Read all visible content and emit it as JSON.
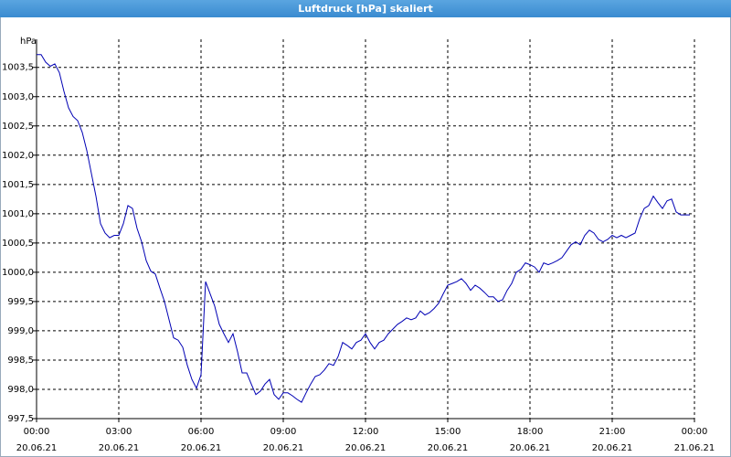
{
  "chart_data": {
    "type": "line",
    "title": "Luftdruck [hPa] skaliert",
    "y_unit": "hPa",
    "x": [
      "20.06.21 00:00",
      "20.06.21 00:10",
      "20.06.21 00:20",
      "20.06.21 00:30",
      "20.06.21 00:40",
      "20.06.21 00:50",
      "20.06.21 01:00",
      "20.06.21 01:10",
      "20.06.21 01:20",
      "20.06.21 01:30",
      "20.06.21 01:40",
      "20.06.21 01:50",
      "20.06.21 02:00",
      "20.06.21 02:10",
      "20.06.21 02:20",
      "20.06.21 02:30",
      "20.06.21 02:40",
      "20.06.21 02:50",
      "20.06.21 03:00",
      "20.06.21 03:10",
      "20.06.21 03:20",
      "20.06.21 03:30",
      "20.06.21 03:40",
      "20.06.21 03:50",
      "20.06.21 04:00",
      "20.06.21 04:10",
      "20.06.21 04:20",
      "20.06.21 04:30",
      "20.06.21 04:40",
      "20.06.21 04:50",
      "20.06.21 05:00",
      "20.06.21 05:10",
      "20.06.21 05:20",
      "20.06.21 05:30",
      "20.06.21 05:40",
      "20.06.21 05:50",
      "20.06.21 06:00",
      "20.06.21 06:10",
      "20.06.21 06:20",
      "20.06.21 06:30",
      "20.06.21 06:40",
      "20.06.21 06:50",
      "20.06.21 07:00",
      "20.06.21 07:10",
      "20.06.21 07:20",
      "20.06.21 07:30",
      "20.06.21 07:40",
      "20.06.21 07:50",
      "20.06.21 08:00",
      "20.06.21 08:10",
      "20.06.21 08:20",
      "20.06.21 08:30",
      "20.06.21 08:40",
      "20.06.21 08:50",
      "20.06.21 09:00",
      "20.06.21 09:10",
      "20.06.21 09:20",
      "20.06.21 09:30",
      "20.06.21 09:40",
      "20.06.21 09:50",
      "20.06.21 10:00",
      "20.06.21 10:10",
      "20.06.21 10:20",
      "20.06.21 10:30",
      "20.06.21 10:40",
      "20.06.21 10:50",
      "20.06.21 11:00",
      "20.06.21 11:10",
      "20.06.21 11:20",
      "20.06.21 11:30",
      "20.06.21 11:40",
      "20.06.21 11:50",
      "20.06.21 12:00",
      "20.06.21 12:10",
      "20.06.21 12:20",
      "20.06.21 12:30",
      "20.06.21 12:40",
      "20.06.21 12:50",
      "20.06.21 13:00",
      "20.06.21 13:10",
      "20.06.21 13:20",
      "20.06.21 13:30",
      "20.06.21 13:40",
      "20.06.21 13:50",
      "20.06.21 14:00",
      "20.06.21 14:10",
      "20.06.21 14:20",
      "20.06.21 14:30",
      "20.06.21 14:40",
      "20.06.21 14:50",
      "20.06.21 15:00",
      "20.06.21 15:10",
      "20.06.21 15:20",
      "20.06.21 15:30",
      "20.06.21 15:40",
      "20.06.21 15:50",
      "20.06.21 16:00",
      "20.06.21 16:10",
      "20.06.21 16:20",
      "20.06.21 16:30",
      "20.06.21 16:40",
      "20.06.21 16:50",
      "20.06.21 17:00",
      "20.06.21 17:10",
      "20.06.21 17:20",
      "20.06.21 17:30",
      "20.06.21 17:40",
      "20.06.21 17:50",
      "20.06.21 18:00",
      "20.06.21 18:10",
      "20.06.21 18:20",
      "20.06.21 18:30",
      "20.06.21 18:40",
      "20.06.21 18:50",
      "20.06.21 19:00",
      "20.06.21 19:10",
      "20.06.21 19:20",
      "20.06.21 19:30",
      "20.06.21 19:40",
      "20.06.21 19:50",
      "20.06.21 20:00",
      "20.06.21 20:10",
      "20.06.21 20:20",
      "20.06.21 20:30",
      "20.06.21 20:40",
      "20.06.21 20:50",
      "20.06.21 21:00",
      "20.06.21 21:10",
      "20.06.21 21:20",
      "20.06.21 21:30",
      "20.06.21 21:40",
      "20.06.21 21:50",
      "20.06.21 22:00",
      "20.06.21 22:10",
      "20.06.21 22:20",
      "20.06.21 22:30",
      "20.06.21 22:40",
      "20.06.21 22:50",
      "20.06.21 23:00",
      "20.06.21 23:10",
      "20.06.21 23:20",
      "20.06.21 23:30",
      "20.06.21 23:40",
      "20.06.21 23:50"
    ],
    "values": [
      1003.72,
      1003.72,
      1003.59,
      1003.52,
      1003.56,
      1003.41,
      1003.09,
      1002.81,
      1002.66,
      1002.59,
      1002.39,
      1002.08,
      1001.69,
      1001.3,
      1000.83,
      1000.67,
      1000.59,
      1000.63,
      1000.63,
      1000.83,
      1001.14,
      1001.09,
      1000.75,
      1000.52,
      1000.2,
      1000.02,
      999.97,
      999.73,
      999.5,
      999.19,
      998.88,
      998.84,
      998.72,
      998.41,
      998.17,
      998.02,
      998.25,
      999.84,
      999.63,
      999.42,
      999.11,
      998.95,
      998.8,
      998.95,
      998.64,
      998.28,
      998.28,
      998.09,
      997.91,
      997.97,
      998.09,
      998.17,
      997.91,
      997.83,
      997.94,
      997.94,
      997.89,
      997.83,
      997.78,
      997.94,
      998.09,
      998.22,
      998.25,
      998.33,
      998.44,
      998.41,
      998.56,
      998.8,
      998.75,
      998.69,
      998.8,
      998.84,
      998.95,
      998.8,
      998.69,
      998.8,
      998.84,
      998.95,
      999.03,
      999.11,
      999.16,
      999.22,
      999.19,
      999.22,
      999.34,
      999.27,
      999.31,
      999.38,
      999.47,
      999.63,
      999.78,
      999.81,
      999.84,
      999.89,
      999.81,
      999.69,
      999.78,
      999.73,
      999.66,
      999.58,
      999.58,
      999.5,
      999.53,
      999.69,
      999.81,
      1000.0,
      1000.05,
      1000.16,
      1000.13,
      1000.09,
      1000.0,
      1000.16,
      1000.13,
      1000.16,
      1000.2,
      1000.25,
      1000.36,
      1000.47,
      1000.52,
      1000.47,
      1000.63,
      1000.72,
      1000.67,
      1000.56,
      1000.52,
      1000.56,
      1000.63,
      1000.59,
      1000.63,
      1000.59,
      1000.63,
      1000.67,
      1000.91,
      1001.09,
      1001.14,
      1001.3,
      1001.19,
      1001.09,
      1001.22,
      1001.25,
      1001.03,
      1000.98,
      1000.98,
      1000.98
    ],
    "color": "#0000b4",
    "xlim": [
      "20.06.21 00:00",
      "21.06.21 00:00"
    ],
    "xticks": [
      {
        "value": "20.06.21 00:00",
        "label": "00:00",
        "date": "20.06.21"
      },
      {
        "value": "20.06.21 03:00",
        "label": "03:00",
        "date": "20.06.21"
      },
      {
        "value": "20.06.21 06:00",
        "label": "06:00",
        "date": "20.06.21"
      },
      {
        "value": "20.06.21 09:00",
        "label": "09:00",
        "date": "20.06.21"
      },
      {
        "value": "20.06.21 12:00",
        "label": "12:00",
        "date": "20.06.21"
      },
      {
        "value": "20.06.21 15:00",
        "label": "15:00",
        "date": "20.06.21"
      },
      {
        "value": "20.06.21 18:00",
        "label": "18:00",
        "date": "20.06.21"
      },
      {
        "value": "20.06.21 21:00",
        "label": "21:00",
        "date": "20.06.21"
      },
      {
        "value": "21.06.21 00:00",
        "label": "00:00",
        "date": "21.06.21"
      }
    ],
    "ylim": [
      997.5,
      1003.98
    ],
    "yticks": [
      {
        "value": 997.5,
        "label": "997,5"
      },
      {
        "value": 998.0,
        "label": "998,0"
      },
      {
        "value": 998.5,
        "label": "998,5"
      },
      {
        "value": 999.0,
        "label": "999,0"
      },
      {
        "value": 999.5,
        "label": "999,5"
      },
      {
        "value": 1000.0,
        "label": "1000,0"
      },
      {
        "value": 1000.5,
        "label": "1000,5"
      },
      {
        "value": 1001.0,
        "label": "1001,0"
      },
      {
        "value": 1001.5,
        "label": "1001,5"
      },
      {
        "value": 1002.0,
        "label": "1002,0"
      },
      {
        "value": 1002.5,
        "label": "1002,5"
      },
      {
        "value": 1003.0,
        "label": "1003,0"
      },
      {
        "value": 1003.5,
        "label": "1003,5"
      }
    ],
    "grid": true
  }
}
